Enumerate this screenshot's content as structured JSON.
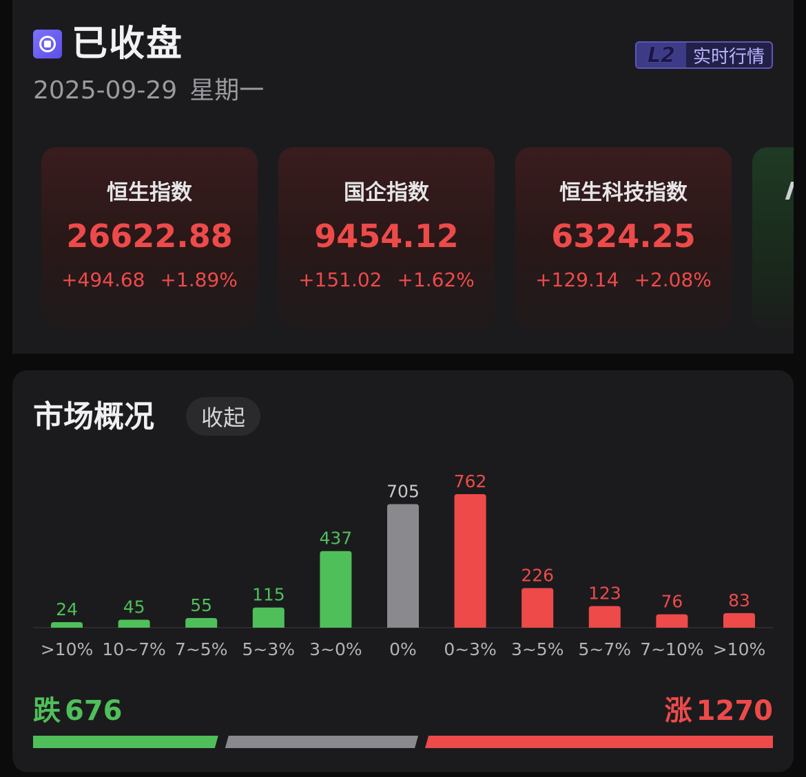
{
  "header": {
    "status": "已收盘",
    "date": "2025-09-29",
    "weekday": "星期一",
    "badge": {
      "level": "L2",
      "text": "实时行情"
    }
  },
  "indices": [
    {
      "name": "恒生指数",
      "value": "26622.88",
      "change": "+494.68",
      "change_pct": "+1.89%"
    },
    {
      "name": "国企指数",
      "value": "9454.12",
      "change": "+151.02",
      "change_pct": "+1.62%"
    },
    {
      "name": "恒生科技指数",
      "value": "6324.25",
      "change": "+129.14",
      "change_pct": "+2.08%"
    }
  ],
  "market": {
    "title": "市场概况",
    "collapse_label": "收起",
    "fall_label": "跌",
    "fall_count": "676",
    "rise_label": "涨",
    "rise_count": "1270",
    "flat_count": 705
  },
  "colors": {
    "up": "#ee4a4a",
    "down": "#4fbf5a",
    "flat": "#8a8a8e"
  },
  "chart_data": {
    "type": "bar",
    "categories": [
      ">10%",
      "10~7%",
      "7~5%",
      "5~3%",
      "3~0%",
      "0%",
      "0~3%",
      "3~5%",
      "5~7%",
      "7~10%",
      ">10%"
    ],
    "values": [
      24,
      45,
      55,
      115,
      437,
      705,
      762,
      226,
      123,
      76,
      83
    ],
    "groups": [
      "down",
      "down",
      "down",
      "down",
      "down",
      "flat",
      "up",
      "up",
      "up",
      "up",
      "up"
    ],
    "ylim": [
      0,
      762
    ],
    "grid": false
  }
}
